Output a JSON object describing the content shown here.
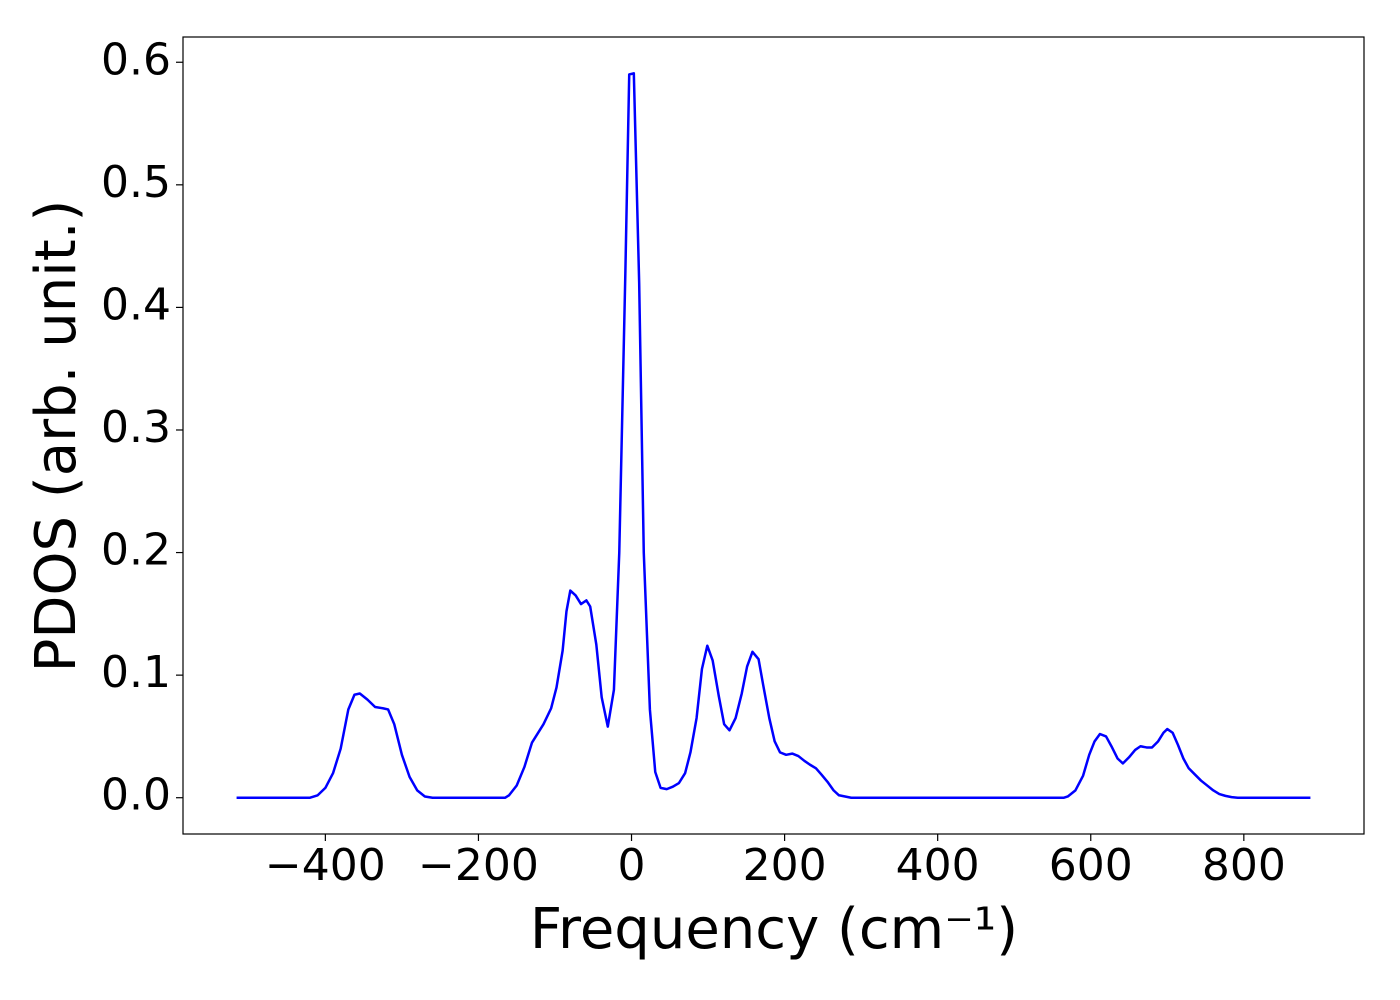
{
  "chart_data": {
    "type": "line",
    "xlabel": "Frequency (cm⁻¹)",
    "ylabel": "PDOS (arb. unit.)",
    "xlim": [
      -586,
      957
    ],
    "ylim": [
      -0.0296,
      0.6206
    ],
    "xticks": [
      {
        "value": -400,
        "label": "−400"
      },
      {
        "value": -200,
        "label": "−200"
      },
      0,
      200,
      400,
      600,
      800
    ],
    "yticks": [
      {
        "value": 0,
        "label": "0.0"
      },
      0.1,
      0.2,
      0.3,
      0.4,
      0.5,
      0.6
    ],
    "grid": false,
    "series": [
      {
        "color": "#0000ff",
        "x": [
          -516,
          -420,
          -410,
          -400,
          -390,
          -380,
          -370,
          -362,
          -355,
          -345,
          -335,
          -325,
          -318,
          -310,
          -300,
          -290,
          -280,
          -270,
          -260,
          -165,
          -160,
          -150,
          -140,
          -130,
          -115,
          -105,
          -98,
          -90,
          -85,
          -80,
          -73,
          -66,
          -59,
          -54,
          -46,
          -39,
          -31,
          -23,
          -16,
          -8,
          -3,
          3,
          10,
          16,
          24,
          31,
          38,
          46,
          54,
          62,
          70,
          77,
          85,
          92,
          99,
          106,
          114,
          121,
          128,
          136,
          144,
          151,
          158,
          166,
          172,
          180,
          187,
          194,
          202,
          210,
          218,
          226,
          233,
          241,
          248,
          256,
          264,
          271,
          279,
          287,
          565,
          570,
          580,
          590,
          598,
          605,
          612,
          620,
          627,
          635,
          642,
          650,
          658,
          665,
          673,
          680,
          688,
          695,
          700,
          707,
          714,
          721,
          728,
          736,
          744,
          752,
          760,
          768,
          776,
          784,
          792,
          887
        ],
        "values": [
          0,
          0,
          0.002,
          0.008,
          0.02,
          0.04,
          0.072,
          0.084,
          0.085,
          0.08,
          0.074,
          0.073,
          0.072,
          0.06,
          0.035,
          0.017,
          0.006,
          0.001,
          0,
          0,
          0.002,
          0.01,
          0.025,
          0.045,
          0.06,
          0.073,
          0.09,
          0.12,
          0.152,
          0.169,
          0.165,
          0.158,
          0.161,
          0.156,
          0.125,
          0.082,
          0.058,
          0.088,
          0.2,
          0.43,
          0.59,
          0.591,
          0.42,
          0.2,
          0.072,
          0.021,
          0.008,
          0.007,
          0.009,
          0.012,
          0.02,
          0.037,
          0.065,
          0.105,
          0.124,
          0.112,
          0.083,
          0.06,
          0.055,
          0.065,
          0.085,
          0.107,
          0.119,
          0.113,
          0.092,
          0.065,
          0.046,
          0.037,
          0.035,
          0.036,
          0.034,
          0.03,
          0.027,
          0.024,
          0.019,
          0.013,
          0.006,
          0.002,
          0.001,
          0,
          0,
          0.001,
          0.006,
          0.018,
          0.035,
          0.046,
          0.052,
          0.05,
          0.042,
          0.032,
          0.028,
          0.033,
          0.039,
          0.042,
          0.041,
          0.041,
          0.046,
          0.053,
          0.056,
          0.053,
          0.043,
          0.032,
          0.024,
          0.019,
          0.014,
          0.01,
          0.006,
          0.003,
          0.0015,
          0.0005,
          0,
          0
        ]
      }
    ]
  }
}
